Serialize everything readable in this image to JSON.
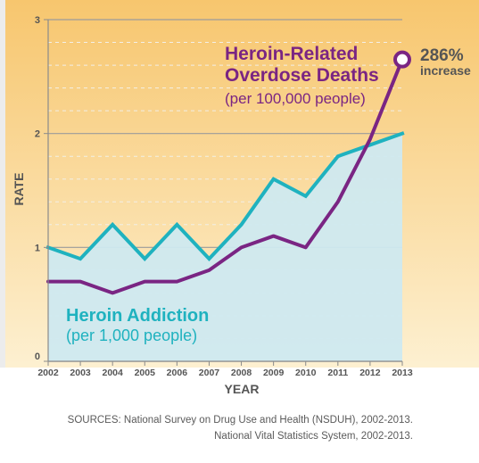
{
  "chart_data": {
    "type": "line",
    "x": [
      2002,
      2003,
      2004,
      2005,
      2006,
      2007,
      2008,
      2009,
      2010,
      2011,
      2012,
      2013
    ],
    "xlabel": "YEAR",
    "ylabel": "RATE",
    "ylim": [
      0,
      3
    ],
    "yticks": [
      0,
      1,
      2,
      3
    ],
    "grid": true,
    "series": [
      {
        "name_line1": "Heroin Addiction",
        "name_line2": "(per 1,000 people)",
        "color": "#1fb2bf",
        "fill": "#cfe9f0",
        "values": [
          1.0,
          0.9,
          1.2,
          0.9,
          1.2,
          0.9,
          1.2,
          1.6,
          1.45,
          1.8,
          1.9,
          2.0
        ]
      },
      {
        "name_line1": "Heroin-Related",
        "name_line2": "Overdose Deaths",
        "name_line3": "(per 100,000 people)",
        "color": "#7a2583",
        "values": [
          0.7,
          0.7,
          0.6,
          0.7,
          0.7,
          0.8,
          1.0,
          1.1,
          1.0,
          1.4,
          1.95,
          2.65
        ]
      }
    ],
    "annotation": {
      "value": "286%",
      "text": "increase"
    },
    "colors": {
      "background_top": "#f7c66e",
      "background_bottom": "#fdf0d1",
      "axis_line": "#8b8b8b",
      "tick_text": "#555555"
    }
  },
  "sources": {
    "line1": "SOURCES: National Survey on Drug Use and Health (NSDUH), 2002-2013.",
    "line2": "National Vital Statistics System, 2002-2013."
  }
}
